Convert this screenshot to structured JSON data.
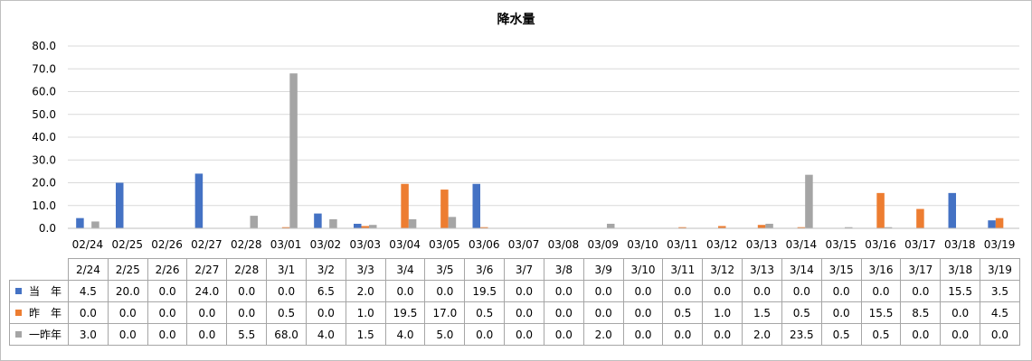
{
  "chart_data": {
    "type": "bar",
    "title": "降水量",
    "axis_categories": [
      "02/24",
      "02/25",
      "02/26",
      "02/27",
      "02/28",
      "03/01",
      "03/02",
      "03/03",
      "03/04",
      "03/05",
      "03/06",
      "03/07",
      "03/08",
      "03/09",
      "03/10",
      "03/11",
      "03/12",
      "03/13",
      "03/14",
      "03/15",
      "03/16",
      "03/17",
      "03/18",
      "03/19"
    ],
    "table_categories": [
      "2/24",
      "2/25",
      "2/26",
      "2/27",
      "2/28",
      "3/1",
      "3/2",
      "3/3",
      "3/4",
      "3/5",
      "3/6",
      "3/7",
      "3/8",
      "3/9",
      "3/10",
      "3/11",
      "3/12",
      "3/13",
      "3/14",
      "3/15",
      "3/16",
      "3/17",
      "3/18",
      "3/19"
    ],
    "ylim": [
      0,
      80
    ],
    "yticks": [
      "0.0",
      "10.0",
      "20.0",
      "30.0",
      "40.0",
      "50.0",
      "60.0",
      "70.0",
      "80.0"
    ],
    "grid": true,
    "legend_placement": "data table below chart",
    "series": [
      {
        "name": "当　年",
        "color": "#4472c4",
        "values": [
          4.5,
          20.0,
          0.0,
          24.0,
          0.0,
          0.0,
          6.5,
          2.0,
          0.0,
          0.0,
          19.5,
          0.0,
          0.0,
          0.0,
          0.0,
          0.0,
          0.0,
          0.0,
          0.0,
          0.0,
          0.0,
          0.0,
          15.5,
          3.5
        ]
      },
      {
        "name": "昨　年",
        "color": "#ed7d31",
        "values": [
          0.0,
          0.0,
          0.0,
          0.0,
          0.0,
          0.5,
          0.0,
          1.0,
          19.5,
          17.0,
          0.5,
          0.0,
          0.0,
          0.0,
          0.0,
          0.5,
          1.0,
          1.5,
          0.5,
          0.0,
          15.5,
          8.5,
          0.0,
          4.5
        ]
      },
      {
        "name": "一昨年",
        "color": "#a5a5a5",
        "values": [
          3.0,
          0.0,
          0.0,
          0.0,
          5.5,
          68.0,
          4.0,
          1.5,
          4.0,
          5.0,
          0.0,
          0.0,
          0.0,
          2.0,
          0.0,
          0.0,
          0.0,
          2.0,
          23.5,
          0.5,
          0.5,
          0.0,
          0.0,
          0.0
        ]
      }
    ]
  }
}
